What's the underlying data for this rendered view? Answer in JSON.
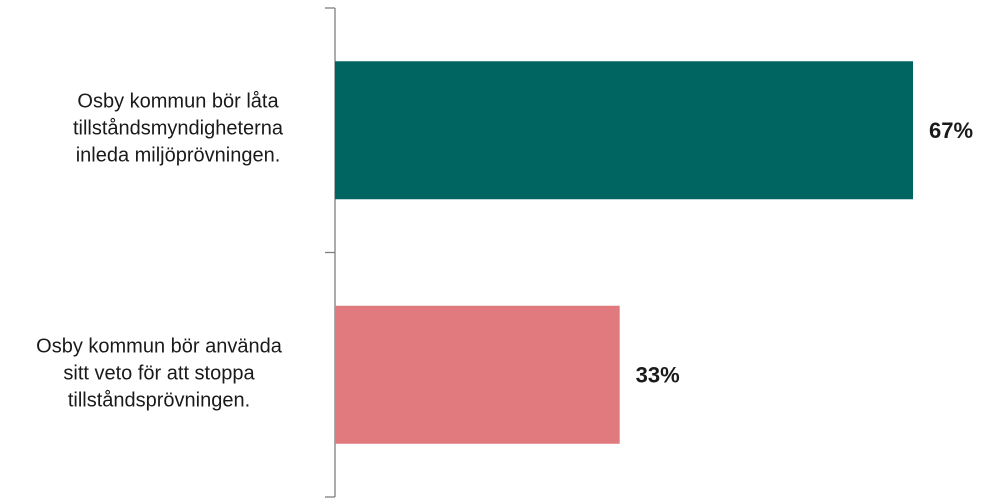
{
  "chart_data": {
    "type": "barh",
    "categories": [
      "Osby kommun bör låta\ntillståndsmyndigheterna\ninleda miljöprövningen.",
      "Osby kommun bör använda\nsitt veto för att stoppa\ntillståndsprövningen."
    ],
    "values": [
      67,
      33
    ],
    "value_labels": [
      "67%",
      "33%"
    ],
    "colors": [
      "#006461",
      "#e07a7f"
    ]
  }
}
